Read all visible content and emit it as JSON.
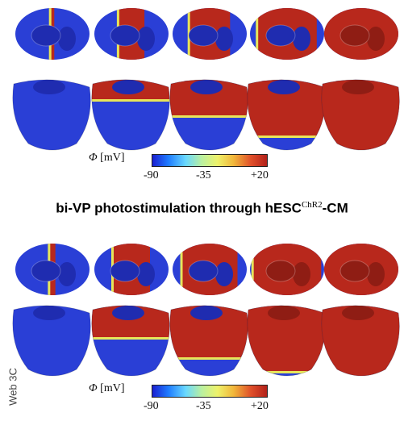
{
  "section_title": {
    "main": "bi-VP photostimulation through hESC",
    "sup": "ChR2",
    "suffix": "-CM"
  },
  "colorbar": {
    "symbol": "Φ",
    "unit": " [mV]",
    "ticks": [
      "-90",
      "-35",
      "+20"
    ],
    "colors": [
      "#1a1fd0",
      "#1f7cff",
      "#69d8ff",
      "#b9f0a0",
      "#eef26a",
      "#f1b63a",
      "#e0502a",
      "#b3201a"
    ]
  },
  "side_label": "Web 3C",
  "colors": {
    "resting": "#2a3fd6",
    "depolarized": "#b8281c",
    "front": "#e7e55a",
    "dark_rest": "#1f2cb0",
    "dark_depol": "#8f1d14"
  },
  "grid": {
    "top_rows": 2,
    "bottom_rows": 2,
    "columns": 5
  }
}
